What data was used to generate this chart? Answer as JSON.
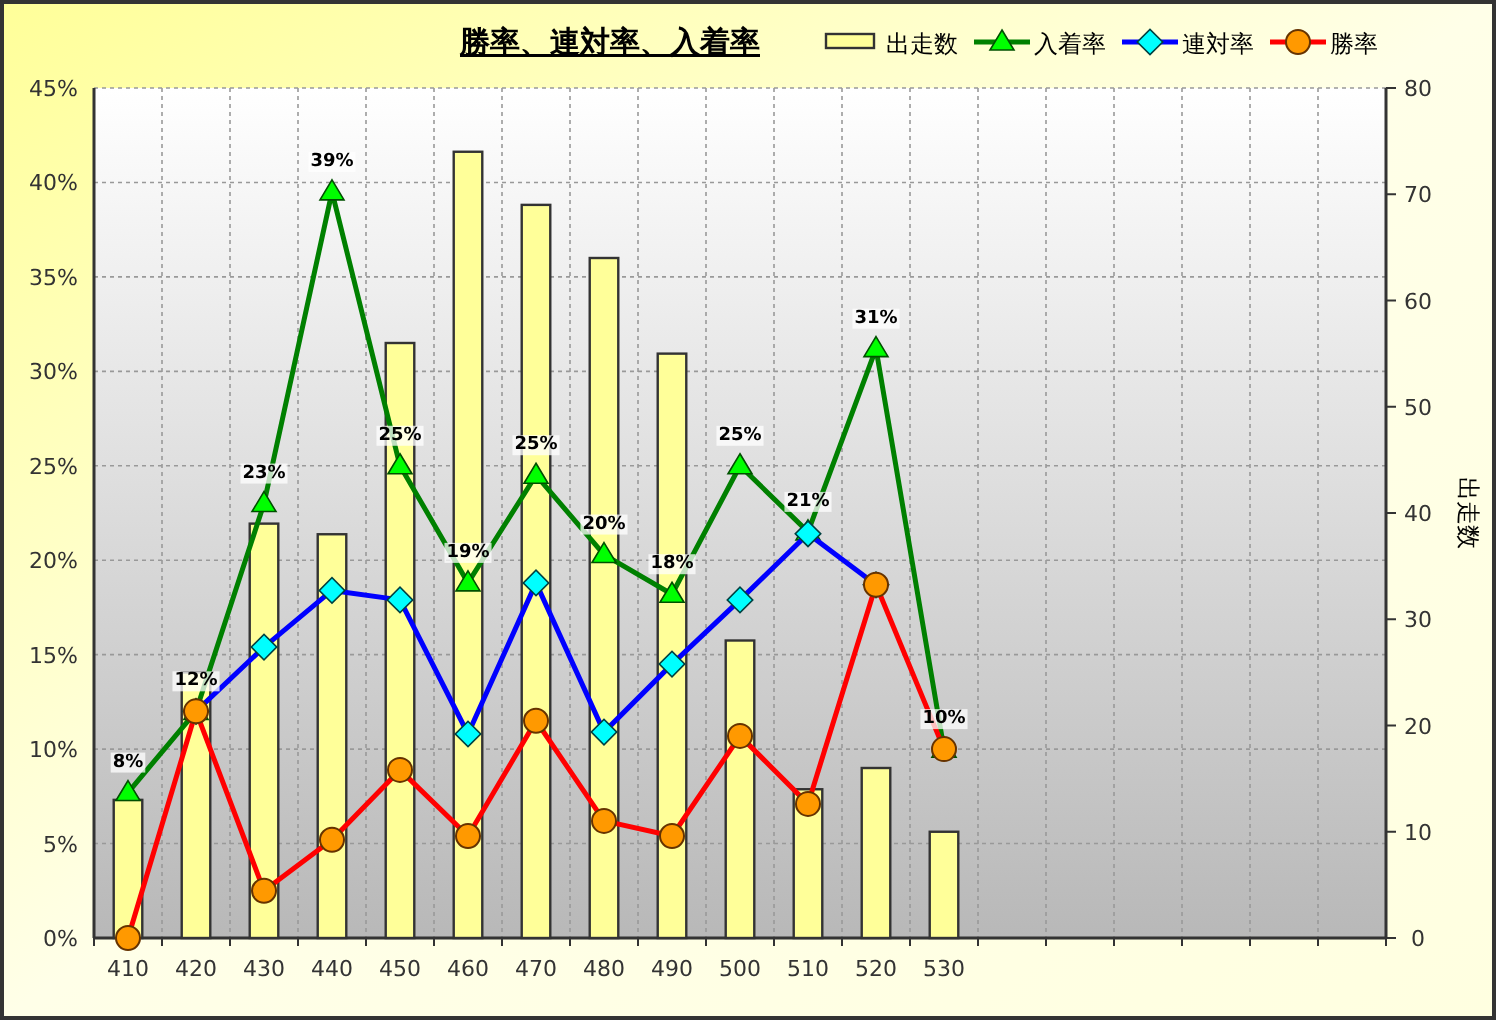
{
  "chart_data": {
    "type": "bar",
    "title": "勝率、連対率、入着率",
    "y2label": "出走数",
    "categories": [
      "410",
      "420",
      "430",
      "440",
      "450",
      "460",
      "470",
      "480",
      "490",
      "500",
      "510",
      "520",
      "530",
      null,
      null,
      null,
      null,
      null,
      null
    ],
    "series": [
      {
        "name": "出走数",
        "axis": "y2",
        "color": "#ffff99",
        "values": [
          13,
          25,
          39,
          38,
          56,
          74,
          69,
          64,
          55,
          28,
          14,
          16,
          10,
          null,
          null,
          null,
          null,
          null,
          null
        ]
      },
      {
        "name": "入着率",
        "type": "line",
        "color": "#008000",
        "marker": "triangle",
        "values": [
          7.7,
          12,
          23,
          39.5,
          25,
          18.8,
          24.5,
          20.3,
          18.2,
          25,
          21.5,
          31.2,
          10,
          null,
          null,
          null,
          null,
          null,
          null
        ],
        "value_labels": [
          "8%",
          "12%",
          "23%",
          "39%",
          "25%",
          "19%",
          "25%",
          "20%",
          "18%",
          "25%",
          "21%",
          "31%",
          "10%",
          null,
          null,
          null,
          null,
          null,
          null
        ]
      },
      {
        "name": "連対率",
        "type": "line",
        "color": "#0000ff",
        "marker": "diamond",
        "values": [
          null,
          12,
          15.4,
          18.4,
          17.9,
          10.8,
          18.8,
          10.9,
          14.5,
          17.9,
          21.4,
          18.7,
          null,
          null,
          null,
          null,
          null,
          null,
          null
        ]
      },
      {
        "name": "勝率",
        "type": "line",
        "color": "#ff0000",
        "marker": "circle",
        "values": [
          0,
          12,
          2.5,
          5.2,
          8.9,
          5.4,
          11.5,
          6.2,
          5.4,
          10.7,
          7.1,
          18.7,
          10,
          null,
          null,
          null,
          null,
          null,
          null
        ]
      }
    ],
    "ylim": [
      0,
      45
    ],
    "yticks": [
      {
        "value": 0,
        "label": "0%"
      },
      {
        "value": 5,
        "label": "5%"
      },
      {
        "value": 10,
        "label": "10%"
      },
      {
        "value": 15,
        "label": "15%"
      },
      {
        "value": 20,
        "label": "20%"
      },
      {
        "value": 25,
        "label": "25%"
      },
      {
        "value": 30,
        "label": "30%"
      },
      {
        "value": 35,
        "label": "35%"
      },
      {
        "value": 40,
        "label": "40%"
      },
      {
        "value": 45,
        "label": "45%"
      }
    ],
    "y2lim": [
      0,
      80
    ],
    "y2ticks": [
      0,
      10,
      20,
      30,
      40,
      50,
      60,
      70,
      80
    ],
    "grid": true,
    "legend": "top right"
  }
}
